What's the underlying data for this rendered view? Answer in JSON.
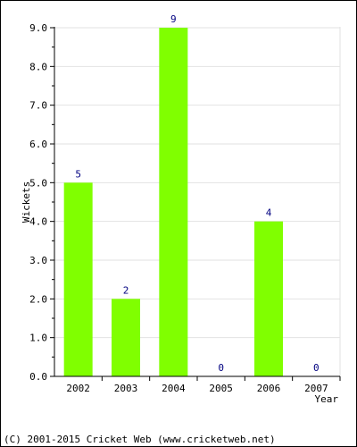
{
  "chart_data": {
    "type": "bar",
    "categories": [
      "2002",
      "2003",
      "2004",
      "2005",
      "2006",
      "2007"
    ],
    "values": [
      5,
      2,
      9,
      0,
      4,
      0
    ],
    "value_labels": [
      "5",
      "2",
      "9",
      "0",
      "4",
      "0"
    ],
    "xlabel": "Year",
    "ylabel": "Wickets",
    "ylim": [
      0,
      9
    ],
    "yticks": [
      "0.0",
      "1.0",
      "2.0",
      "3.0",
      "4.0",
      "5.0",
      "6.0",
      "7.0",
      "8.0",
      "9.0"
    ],
    "grid": true,
    "bar_color": "#80ff00"
  },
  "footer": {
    "copyright": "(C) 2001-2015 Cricket Web (www.cricketweb.net)"
  }
}
